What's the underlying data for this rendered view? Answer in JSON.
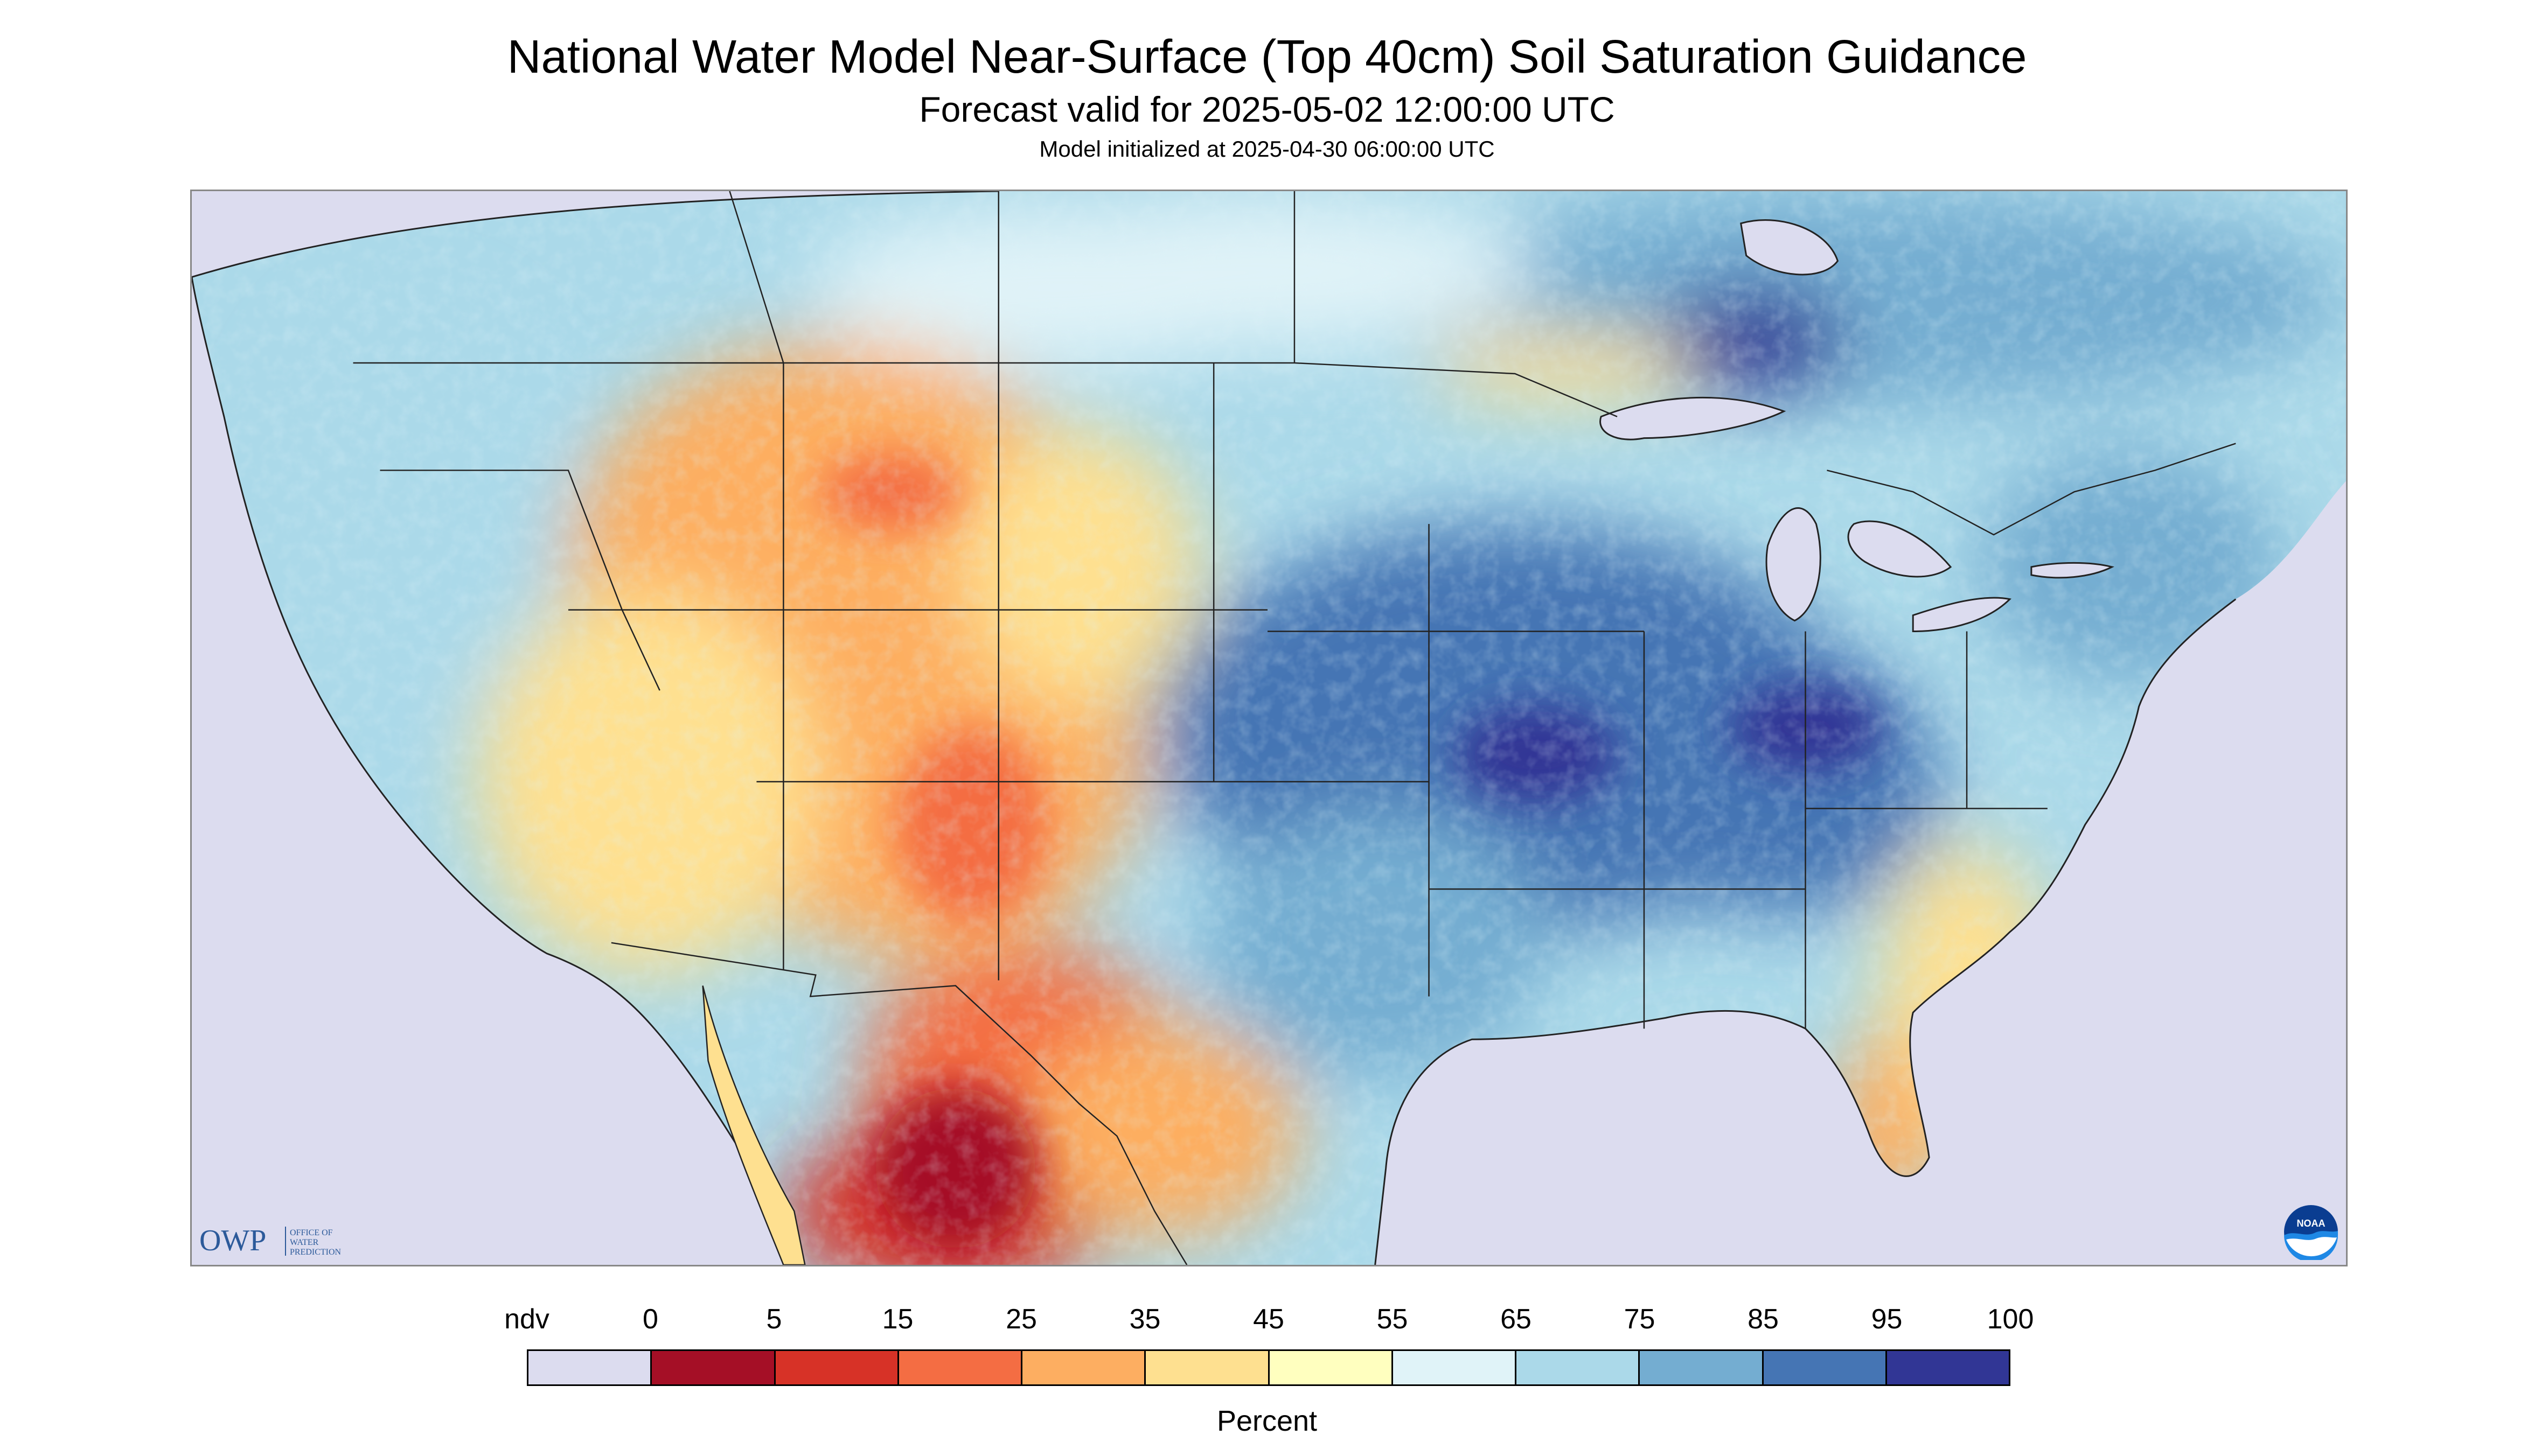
{
  "header": {
    "title": "National Water Model Near-Surface (Top 40cm) Soil Saturation Guidance",
    "subtitle": "Forecast valid for 2025-05-02 12:00:00 UTC",
    "initialized": "Model initialized at 2025-04-30 06:00:00 UTC"
  },
  "map": {
    "region": "CONUS",
    "background_no_data_color": "#dcdcef",
    "water_color": "#dcdcef",
    "border_color": "#222222"
  },
  "logos": {
    "owp": {
      "mark": "OWP",
      "line1": "OFFICE OF",
      "line2": "WATER",
      "line3": "PREDICTION"
    },
    "noaa": {
      "mark": "NOAA"
    }
  },
  "legend": {
    "units": "Percent",
    "bins": [
      {
        "label": "ndv",
        "color": "#dcdcef"
      },
      {
        "label": "0",
        "color": "#a50f26"
      },
      {
        "label": "5",
        "color": "#d73227"
      },
      {
        "label": "15",
        "color": "#f46d43"
      },
      {
        "label": "25",
        "color": "#fdae61"
      },
      {
        "label": "35",
        "color": "#fee090"
      },
      {
        "label": "45",
        "color": "#ffffbf"
      },
      {
        "label": "55",
        "color": "#e0f3f8"
      },
      {
        "label": "65",
        "color": "#abd9e9"
      },
      {
        "label": "75",
        "color": "#74add1"
      },
      {
        "label": "85",
        "color": "#4575b4"
      },
      {
        "label": "95",
        "color": "#313695"
      }
    ],
    "end_label": "100"
  }
}
